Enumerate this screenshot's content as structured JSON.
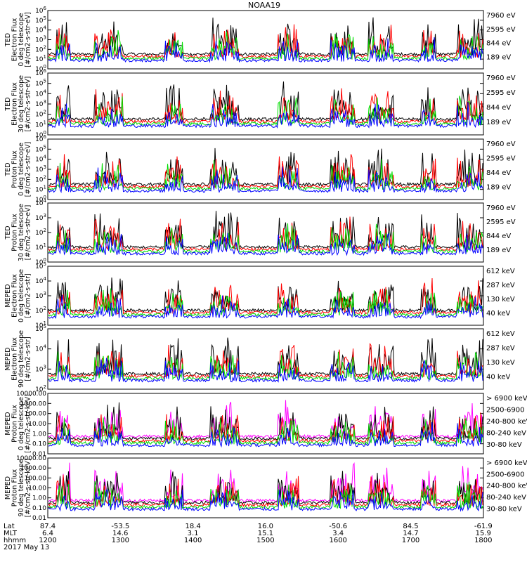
{
  "title": "NOAA19",
  "footer": {
    "row_labels": [
      "Lat",
      "MLT",
      "hhmm"
    ],
    "lat": [
      "87.4",
      "-53.5",
      "18.4",
      "16.0",
      "-50.6",
      "84.5",
      "-61.9"
    ],
    "mlt": [
      "6.4",
      "14.6",
      "3.1",
      "15.1",
      "3.4",
      "14.7",
      "15.9"
    ],
    "hhmm": [
      "1200",
      "1300",
      "1400",
      "1500",
      "1600",
      "1700",
      "1800"
    ],
    "date": "2017 May 13"
  },
  "chart_data": [
    {
      "type": "line",
      "ylabel": [
        "TED",
        "Electron Flux",
        "0 deg telescope",
        "[#/cm2-s-str-eV]"
      ],
      "y_scale": "log",
      "y_ticks": [
        "10^0",
        "10^1",
        "10^2",
        "10^3",
        "10^4",
        "10^5",
        "10^6"
      ],
      "ylim": [
        1,
        1000000
      ],
      "series": [
        {
          "name": "7960 eV",
          "color": "#000000"
        },
        {
          "name": "2595 eV",
          "color": "#ff0000"
        },
        {
          "name": "844 eV",
          "color": "#00dd00"
        },
        {
          "name": "189 eV",
          "color": "#0000ff"
        }
      ]
    },
    {
      "type": "line",
      "ylabel": [
        "TED",
        "Electron Flux",
        "30 deg telescope",
        "[#/cm2-s-str-eV]"
      ],
      "y_scale": "log",
      "y_ticks": [
        "10^0",
        "10^1",
        "10^2",
        "10^3",
        "10^4",
        "10^5",
        "10^6"
      ],
      "ylim": [
        1,
        1000000
      ],
      "series": [
        {
          "name": "7960 eV",
          "color": "#000000"
        },
        {
          "name": "2595 eV",
          "color": "#ff0000"
        },
        {
          "name": "844 eV",
          "color": "#00dd00"
        },
        {
          "name": "189 eV",
          "color": "#0000ff"
        }
      ]
    },
    {
      "type": "line",
      "ylabel": [
        "TED",
        "Proton Flux",
        "0 deg telescope",
        "[#/cm2-s-str-eV]"
      ],
      "y_scale": "log",
      "y_ticks": [
        "10^0",
        "10^1",
        "10^2",
        "10^3",
        "10^4",
        "10^5",
        "10^6"
      ],
      "ylim": [
        1,
        1000000
      ],
      "series": [
        {
          "name": "7960 eV",
          "color": "#000000"
        },
        {
          "name": "2595 eV",
          "color": "#ff0000"
        },
        {
          "name": "844 eV",
          "color": "#00dd00"
        },
        {
          "name": "189 eV",
          "color": "#0000ff"
        }
      ]
    },
    {
      "type": "line",
      "ylabel": [
        "TED",
        "Proton Flux",
        "30 deg telescope",
        "[#/cm2-s-str-eV]"
      ],
      "y_scale": "log",
      "y_ticks": [
        "10^0",
        "10^1",
        "10^2",
        "10^3",
        "10^4"
      ],
      "ylim": [
        1,
        100000
      ],
      "series": [
        {
          "name": "7960 eV",
          "color": "#000000"
        },
        {
          "name": "2595 eV",
          "color": "#ff0000"
        },
        {
          "name": "844 eV",
          "color": "#00dd00"
        },
        {
          "name": "189 eV",
          "color": "#0000ff"
        }
      ]
    },
    {
      "type": "line",
      "ylabel": [
        "MEPED",
        "Electron Flux",
        "0 deg telescope",
        "[#/cm2-s-str]"
      ],
      "y_scale": "log",
      "y_ticks": [
        "10^1",
        "10^2",
        "10^3",
        "10^4",
        "10^5"
      ],
      "ylim": [
        10,
        100000
      ],
      "series": [
        {
          "name": "612 keV",
          "color": "#000000"
        },
        {
          "name": "287 keV",
          "color": "#ff0000"
        },
        {
          "name": "130 keV",
          "color": "#00dd00"
        },
        {
          "name": "40 keV",
          "color": "#0000ff"
        }
      ]
    },
    {
      "type": "line",
      "ylabel": [
        "MEPED",
        "Electron Flux",
        "90 deg telescope",
        "[#/cm2-s-str]"
      ],
      "y_scale": "log",
      "y_ticks": [
        "10^2",
        "10^3",
        "10^4",
        "10^5"
      ],
      "ylim": [
        100,
        100000
      ],
      "series": [
        {
          "name": "612 keV",
          "color": "#000000"
        },
        {
          "name": "287 keV",
          "color": "#ff0000"
        },
        {
          "name": "130 keV",
          "color": "#00dd00"
        },
        {
          "name": "40 keV",
          "color": "#0000ff"
        }
      ]
    },
    {
      "type": "line",
      "ylabel": [
        "MEPED",
        "Proton Flux",
        "0 deg telescope",
        "[#/cm2-s-str-keV]"
      ],
      "y_scale": "log",
      "y_ticks": [
        "0.01",
        "0.10",
        "1.00",
        "10.00",
        "100.00",
        "1000.00",
        "10000.00"
      ],
      "ylim": [
        0.01,
        10000
      ],
      "series": [
        {
          "name": "> 6900 keV",
          "color": "#ff00ff"
        },
        {
          "name": "2500-6900",
          "color": "#000000"
        },
        {
          "name": "240-800 keV",
          "color": "#ff0000"
        },
        {
          "name": "80-240 keV",
          "color": "#00dd00"
        },
        {
          "name": "30-80 keV",
          "color": "#0000ff"
        }
      ]
    },
    {
      "type": "line",
      "ylabel": [
        "MEPED",
        "Proton Flux",
        "90 deg telescope",
        "[#/cm2-s-str-keV]"
      ],
      "y_scale": "log",
      "y_ticks": [
        "0.01",
        "0.10",
        "1.00",
        "10.00",
        "100.00",
        "1000.00",
        "10000.00"
      ],
      "ylim": [
        0.01,
        10000
      ],
      "series": [
        {
          "name": "> 6900 keV",
          "color": "#ff00ff"
        },
        {
          "name": "2500-6900",
          "color": "#000000"
        },
        {
          "name": "240-800 keV",
          "color": "#ff0000"
        },
        {
          "name": "80-240 keV",
          "color": "#00dd00"
        },
        {
          "name": "30-80 keV",
          "color": "#0000ff"
        }
      ]
    }
  ]
}
